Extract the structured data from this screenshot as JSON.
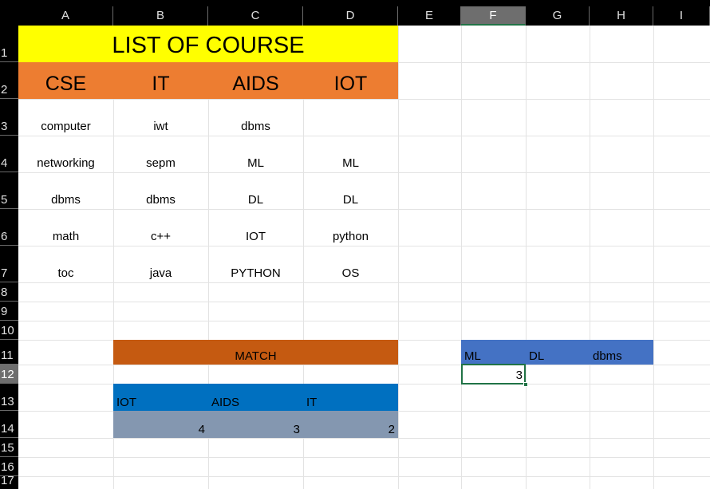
{
  "sheet": {
    "column_headers": [
      "A",
      "B",
      "C",
      "D",
      "E",
      "F",
      "G",
      "H",
      "I"
    ],
    "row_headers": [
      "1",
      "2",
      "3",
      "4",
      "5",
      "6",
      "7",
      "8",
      "9",
      "10",
      "11",
      "12",
      "13",
      "14",
      "15",
      "16",
      "17"
    ],
    "selected_column": "F",
    "selected_row": "12"
  },
  "cells": {
    "title": "LIST OF COURSE",
    "depts": [
      "CSE",
      "IT",
      "AIDS",
      "IOT"
    ],
    "rows": [
      [
        "computer",
        "iwt",
        "dbms",
        ""
      ],
      [
        "networking",
        "sepm",
        "ML",
        "ML"
      ],
      [
        "dbms",
        "dbms",
        "DL",
        "DL"
      ],
      [
        "math",
        "c++",
        "IOT",
        "python"
      ],
      [
        "toc",
        "java",
        "PYTHON",
        "OS"
      ]
    ],
    "match_label": "MATCH",
    "match_headers": [
      "IOT",
      "AIDS",
      "IT"
    ],
    "match_values": [
      "4",
      "3",
      "2"
    ],
    "lookup_headers": [
      "ML",
      "DL",
      "dbms"
    ],
    "lookup_result": "3"
  },
  "colors": {
    "title_fill": "#ffff00",
    "dept_fill": "#ed7d31",
    "match_fill": "#c55a11",
    "match_header_fill": "#0070c0",
    "match_value_fill": "#8497b0",
    "lookup_fill": "#4472c4",
    "active_cell_border": "#217346"
  }
}
